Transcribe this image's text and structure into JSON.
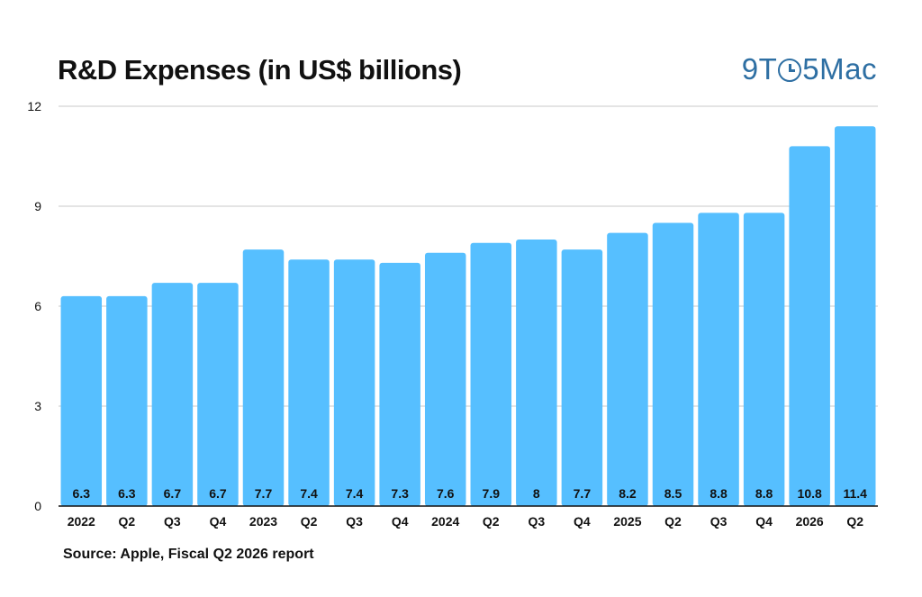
{
  "header": {
    "title": "R&D Expenses (in US$ billions)",
    "logo_pre": "9T",
    "logo_post": "5Mac"
  },
  "footer": {
    "source": "Source: Apple, Fiscal Q2 2026 report"
  },
  "colors": {
    "bar": "#56bfff",
    "grid": "#c8c8c8",
    "axis": "#111111",
    "logo": "#2e6fa3"
  },
  "chart_data": {
    "type": "bar",
    "title": "R&D Expenses (in US$ billions)",
    "xlabel": "",
    "ylabel": "",
    "ylim": [
      0,
      12
    ],
    "yticks": [
      0,
      3,
      6,
      9,
      12
    ],
    "grid": true,
    "categories": [
      "2022",
      "Q2",
      "Q3",
      "Q4",
      "2023",
      "Q2",
      "Q3",
      "Q4",
      "2024",
      "Q2",
      "Q3",
      "Q4",
      "2025",
      "Q2",
      "Q3",
      "Q4",
      "2026",
      "Q2"
    ],
    "values": [
      6.3,
      6.3,
      6.7,
      6.7,
      7.7,
      7.4,
      7.4,
      7.3,
      7.6,
      7.9,
      8,
      7.7,
      8.2,
      8.5,
      8.8,
      8.8,
      10.8,
      11.4
    ],
    "value_labels": [
      "6.3",
      "6.3",
      "6.7",
      "6.7",
      "7.7",
      "7.4",
      "7.4",
      "7.3",
      "7.6",
      "7.9",
      "8",
      "7.7",
      "8.2",
      "8.5",
      "8.8",
      "8.8",
      "10.8",
      "11.4"
    ]
  }
}
